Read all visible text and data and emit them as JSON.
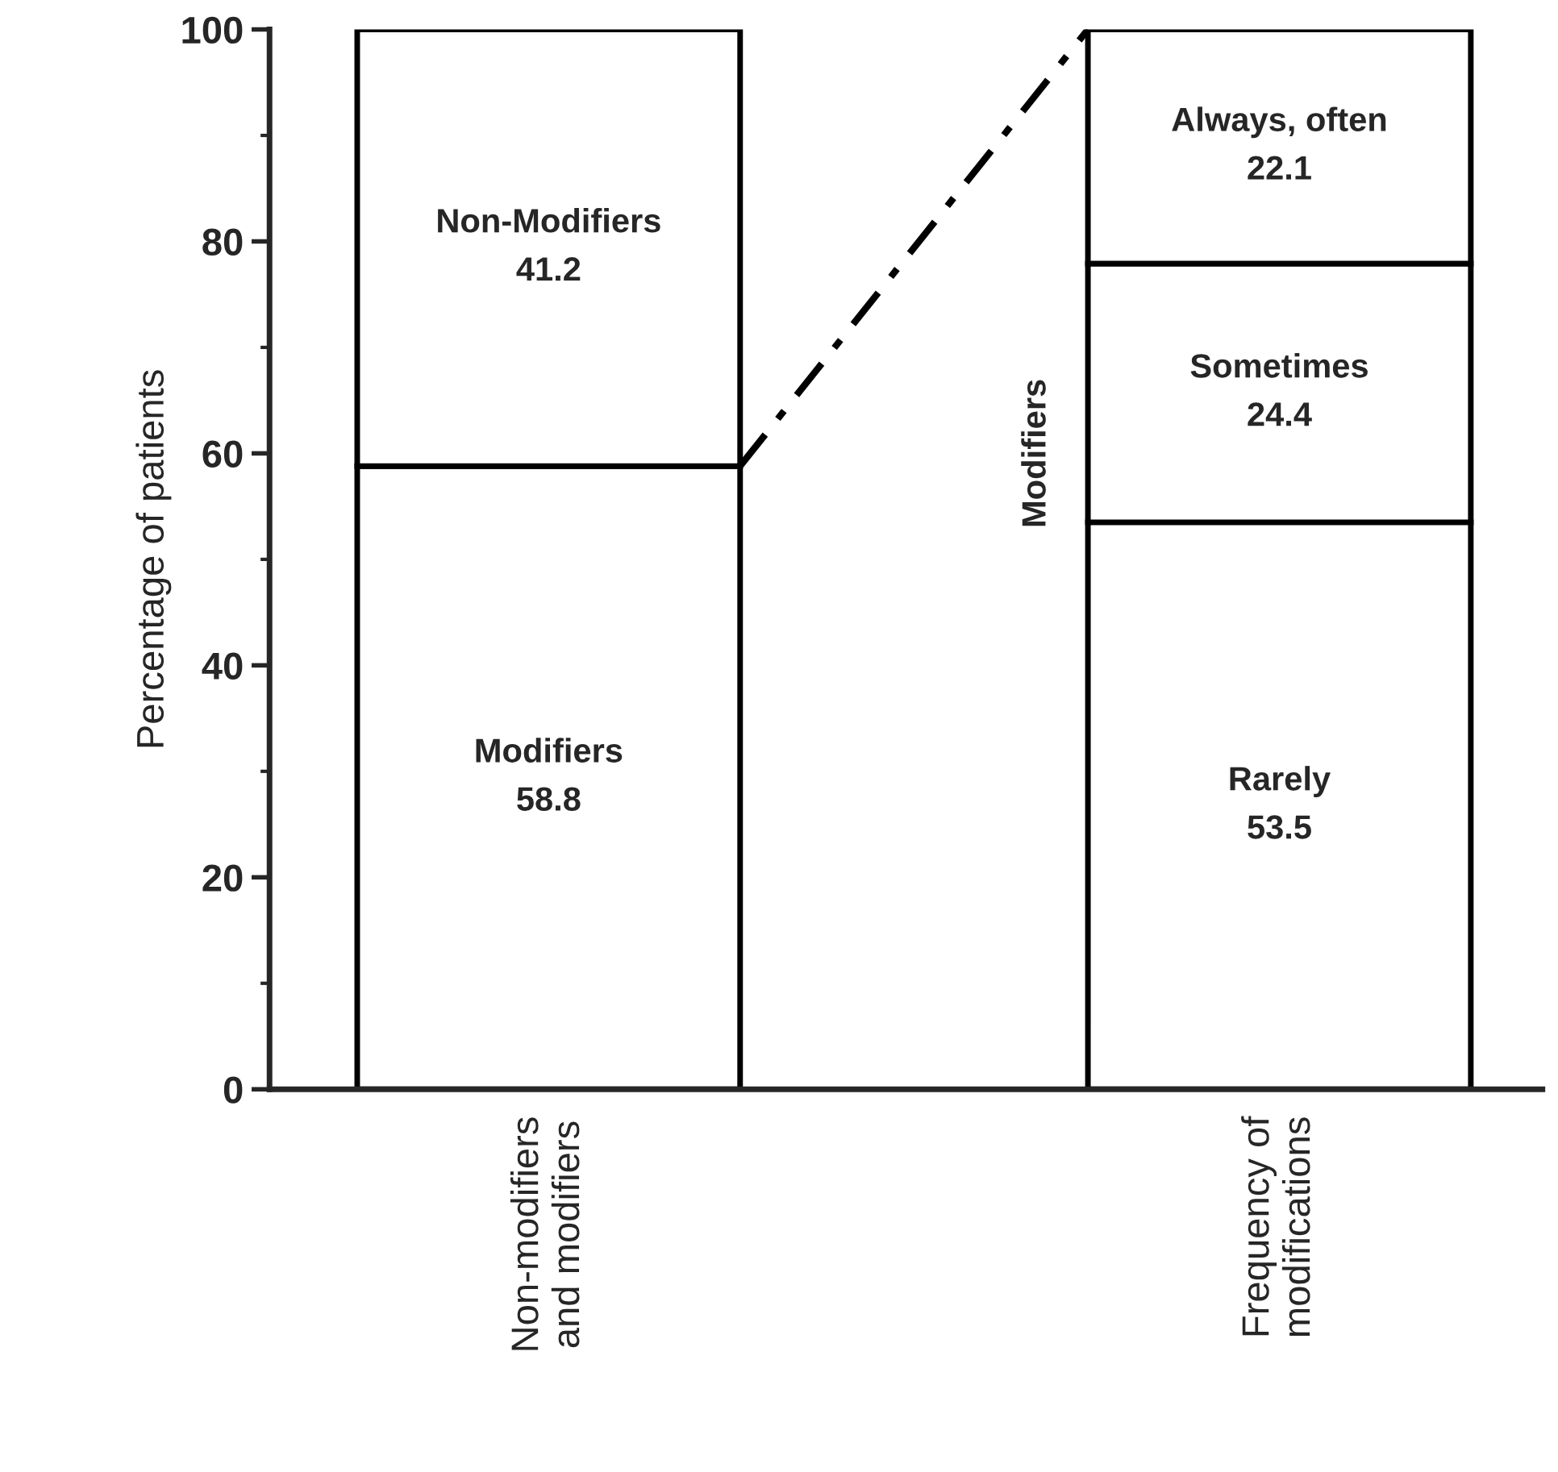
{
  "chart_data": {
    "type": "bar",
    "stacked": true,
    "ylabel": "Percentage of patients",
    "categories": [
      "Non-modifiers\nand modifiers",
      "Frequency of\nmodifications"
    ],
    "series": [
      {
        "name": "Modifiers",
        "color": "#ffffff",
        "values": [
          58.8,
          null
        ]
      },
      {
        "name": "Non-Modifiers",
        "color": "#ffffff",
        "values": [
          41.2,
          null
        ]
      },
      {
        "name": "Rarely",
        "color": "#ffffff",
        "values": [
          null,
          53.5
        ]
      },
      {
        "name": "Sometimes",
        "color": "#ffffff",
        "values": [
          null,
          24.4
        ]
      },
      {
        "name": "Always, often",
        "color": "#ffffff",
        "values": [
          null,
          22.1
        ]
      }
    ],
    "data_labels": true,
    "annotations": [
      "Modifiers"
    ],
    "ylim": [
      0,
      100
    ],
    "yticks": [
      0,
      {
        "value": 10,
        "label": null
      },
      20,
      {
        "value": 30,
        "label": null
      },
      40,
      {
        "value": 50,
        "label": null
      },
      60,
      {
        "value": 70,
        "label": null
      },
      80,
      {
        "value": 90,
        "label": null
      },
      100
    ],
    "grid": false,
    "legend": false
  }
}
